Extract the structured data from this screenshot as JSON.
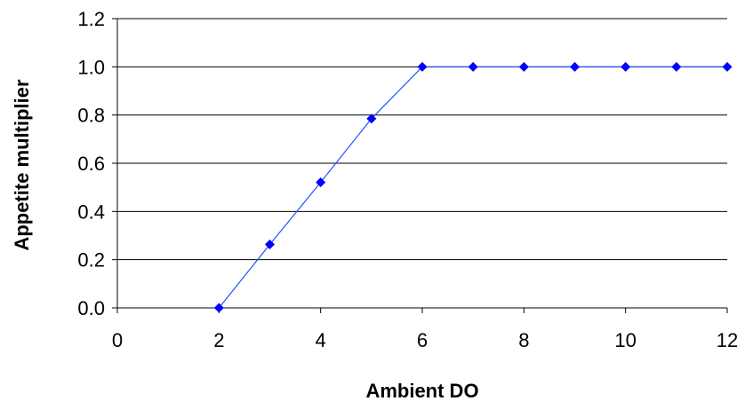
{
  "chart_data": {
    "type": "line",
    "title": "",
    "xlabel": "Ambient DO",
    "ylabel": "Appetite multiplier",
    "xlim": [
      0,
      12
    ],
    "ylim": [
      0,
      1.2
    ],
    "x_ticks": [
      "0",
      "2",
      "4",
      "6",
      "8",
      "10",
      "12"
    ],
    "y_ticks": [
      "0.0",
      "0.2",
      "0.4",
      "0.6",
      "0.8",
      "1.0",
      "1.2"
    ],
    "grid": "horizontal",
    "legend": "none",
    "series": [
      {
        "x": [
          2,
          3,
          4,
          5,
          6,
          7,
          8,
          9,
          10,
          11,
          12
        ],
        "y": [
          0.0,
          0.263,
          0.521,
          0.785,
          1.0,
          1.0,
          1.0,
          1.0,
          1.0,
          1.0,
          1.0
        ],
        "color": "#0000ff",
        "marker": "diamond"
      }
    ],
    "colors": {
      "line": "#1f4fff",
      "marker": "#0000ff",
      "grid": "#000000",
      "axis": "#000000"
    }
  }
}
